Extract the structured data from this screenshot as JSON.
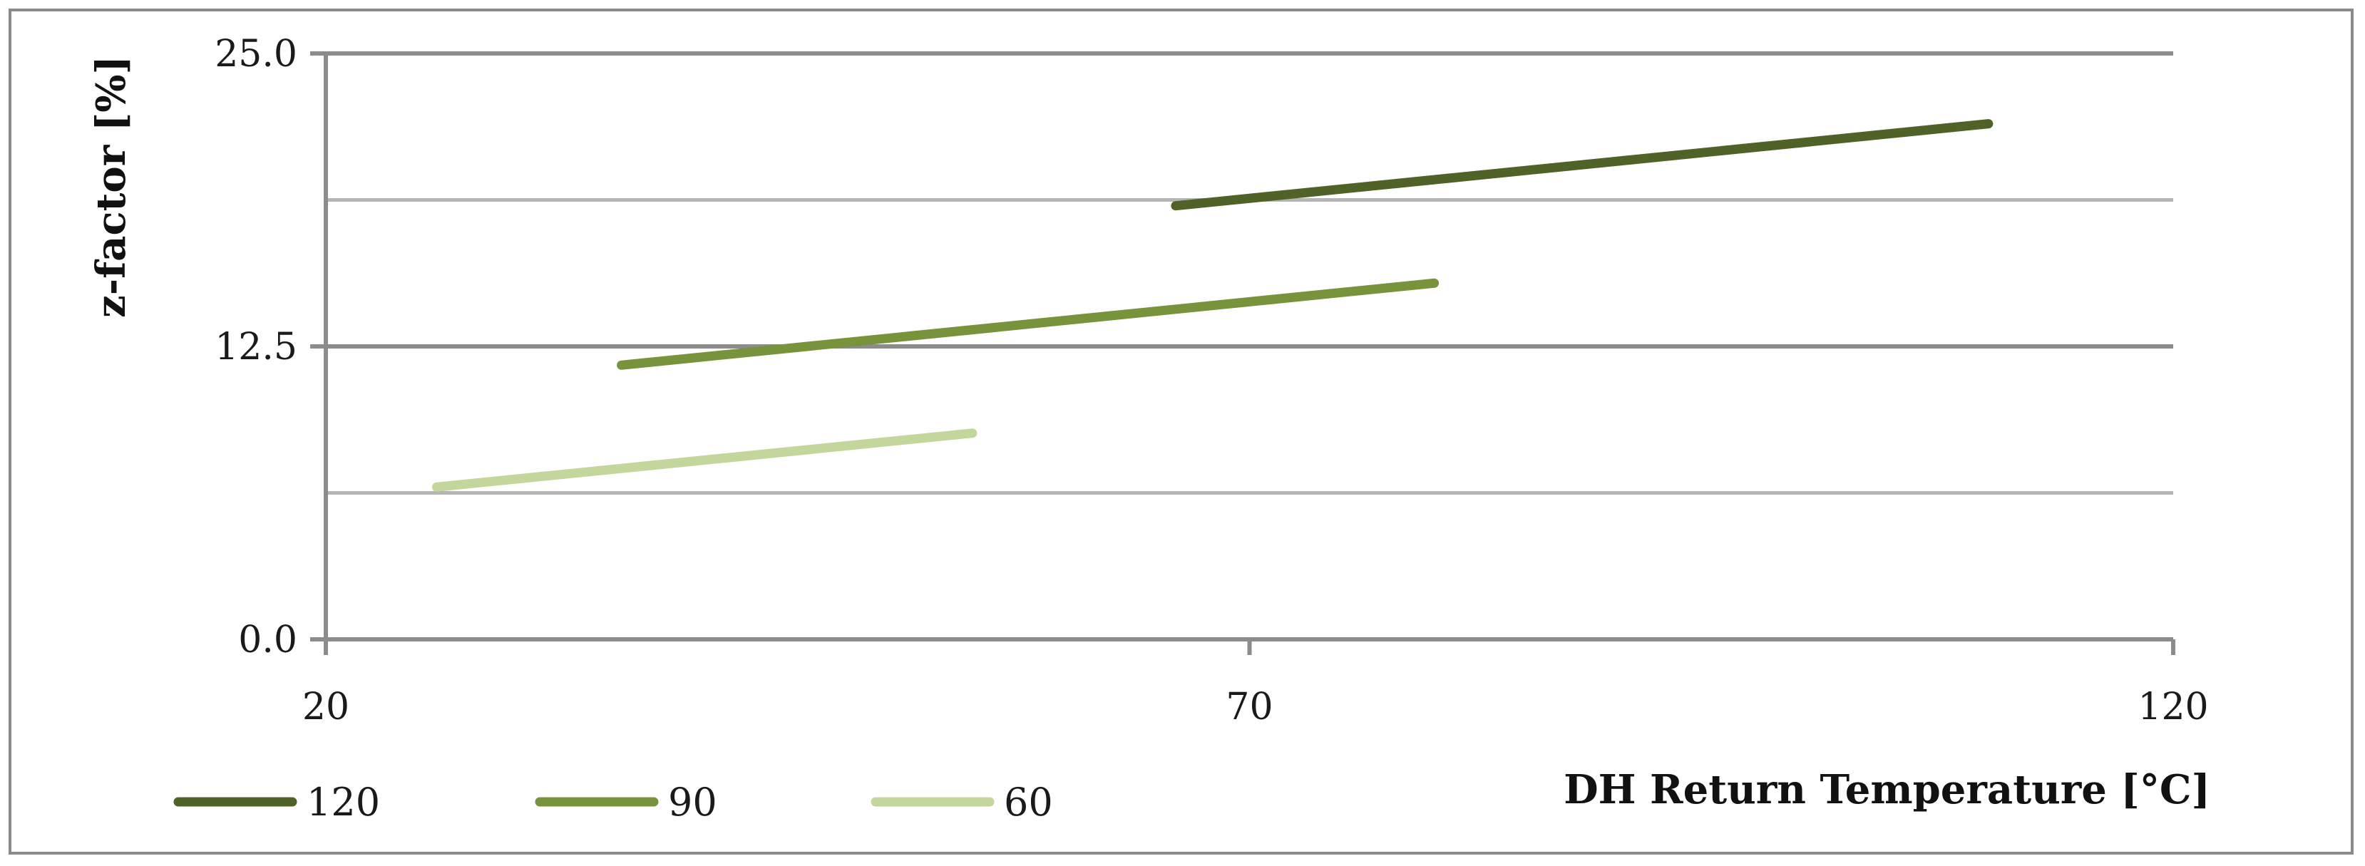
{
  "chart_data": {
    "type": "line",
    "title": "",
    "xlabel": "DH Return Temperature [°C]",
    "ylabel": "z-factor [%]",
    "xlim": [
      20,
      120
    ],
    "ylim": [
      0,
      25
    ],
    "x_ticks": [
      "20",
      "70",
      "120"
    ],
    "y_ticks": [
      "0.0",
      "12.5",
      "25.0"
    ],
    "y_gridlines": [
      6.25,
      12.5,
      18.75,
      25
    ],
    "legend_position": "bottom-left",
    "series": [
      {
        "name": "120",
        "color": "#4f6228",
        "x": [
          66,
          110
        ],
        "y": [
          18.5,
          22.0
        ]
      },
      {
        "name": "90",
        "color": "#77933c",
        "x": [
          36,
          80
        ],
        "y": [
          11.7,
          15.2
        ]
      },
      {
        "name": "60",
        "color": "#c3d69b",
        "x": [
          26,
          55
        ],
        "y": [
          6.5,
          8.8
        ]
      }
    ]
  }
}
